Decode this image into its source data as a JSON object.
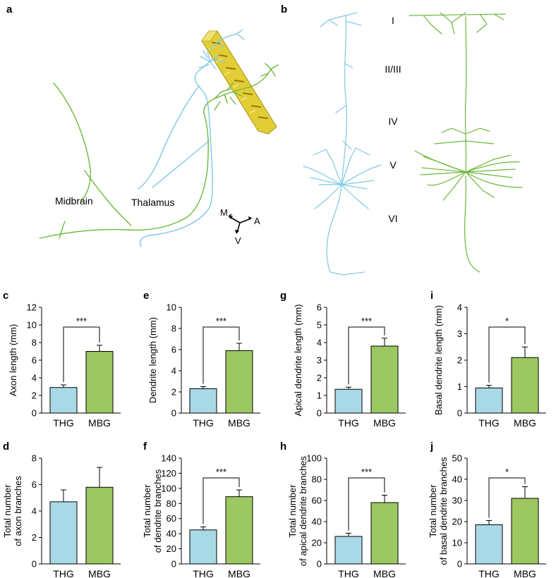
{
  "colors": {
    "thg": "#a9d9e6",
    "mbg": "#9cc761",
    "thg_trace": "#7fc8e3",
    "mbg_trace": "#6db83a",
    "atlas": "#e2cd37",
    "axis": "#000000"
  },
  "panel_a": {
    "letter": "a",
    "region_labels": [
      "Midbrain",
      "Thalamus"
    ],
    "orientation_labels": [
      "M",
      "A",
      "V"
    ]
  },
  "panel_b": {
    "letter": "b",
    "layer_labels": [
      "I",
      "II/III",
      "IV",
      "V",
      "VI"
    ]
  },
  "chart_data": [
    {
      "panel": "c",
      "type": "bar",
      "categories": [
        "THG",
        "MBG"
      ],
      "values": [
        2.9,
        7.0
      ],
      "errors": [
        0.3,
        0.7
      ],
      "ylabel": "Axon length (mm)",
      "ylim": [
        0,
        12
      ],
      "yticks": [
        0,
        2,
        4,
        6,
        8,
        10,
        12
      ],
      "significance": "***"
    },
    {
      "panel": "e",
      "type": "bar",
      "categories": [
        "THG",
        "MBG"
      ],
      "values": [
        2.3,
        5.9
      ],
      "errors": [
        0.2,
        0.7
      ],
      "ylabel": "Dendrite length (mm)",
      "ylim": [
        0,
        10
      ],
      "yticks": [
        0,
        2,
        4,
        6,
        8,
        10
      ],
      "significance": "***"
    },
    {
      "panel": "g",
      "type": "bar",
      "categories": [
        "THG",
        "MBG"
      ],
      "values": [
        1.35,
        3.8
      ],
      "errors": [
        0.12,
        0.45
      ],
      "ylabel": "Apical dendrite length (mm)",
      "ylim": [
        0,
        6
      ],
      "yticks": [
        0,
        1,
        2,
        3,
        4,
        5,
        6
      ],
      "significance": "***"
    },
    {
      "panel": "i",
      "type": "bar",
      "categories": [
        "THG",
        "MBG"
      ],
      "values": [
        0.95,
        2.1
      ],
      "errors": [
        0.1,
        0.4
      ],
      "ylabel": "Basal dendrite length (mm)",
      "ylim": [
        0,
        4
      ],
      "yticks": [
        0,
        1,
        2,
        3,
        4
      ],
      "significance": "*"
    },
    {
      "panel": "d",
      "type": "bar",
      "categories": [
        "THG",
        "MBG"
      ],
      "values": [
        4.7,
        5.8
      ],
      "errors": [
        0.9,
        1.5
      ],
      "ylabel": [
        "Total number",
        "of axon branches"
      ],
      "ylim": [
        0,
        8
      ],
      "yticks": [
        0,
        2,
        4,
        6,
        8
      ],
      "significance": ""
    },
    {
      "panel": "f",
      "type": "bar",
      "categories": [
        "THG",
        "MBG"
      ],
      "values": [
        45,
        89
      ],
      "errors": [
        4,
        9
      ],
      "ylabel": [
        "Total number",
        "of dendrite branches"
      ],
      "ylim": [
        0,
        140
      ],
      "yticks": [
        0,
        20,
        40,
        60,
        80,
        100,
        120,
        140
      ],
      "significance": "***"
    },
    {
      "panel": "h",
      "type": "bar",
      "categories": [
        "THG",
        "MBG"
      ],
      "values": [
        26,
        58
      ],
      "errors": [
        3,
        7
      ],
      "ylabel": [
        "Total number",
        "of apical dendrite branches"
      ],
      "ylim": [
        0,
        100
      ],
      "yticks": [
        0,
        20,
        40,
        60,
        80,
        100
      ],
      "significance": "***"
    },
    {
      "panel": "j",
      "type": "bar",
      "categories": [
        "THG",
        "MBG"
      ],
      "values": [
        18.5,
        31
      ],
      "errors": [
        2,
        5.5
      ],
      "ylabel": [
        "Total number",
        "of basal dendrite branches"
      ],
      "ylim": [
        0,
        50
      ],
      "yticks": [
        0,
        10,
        20,
        30,
        40,
        50
      ],
      "significance": "*"
    }
  ]
}
